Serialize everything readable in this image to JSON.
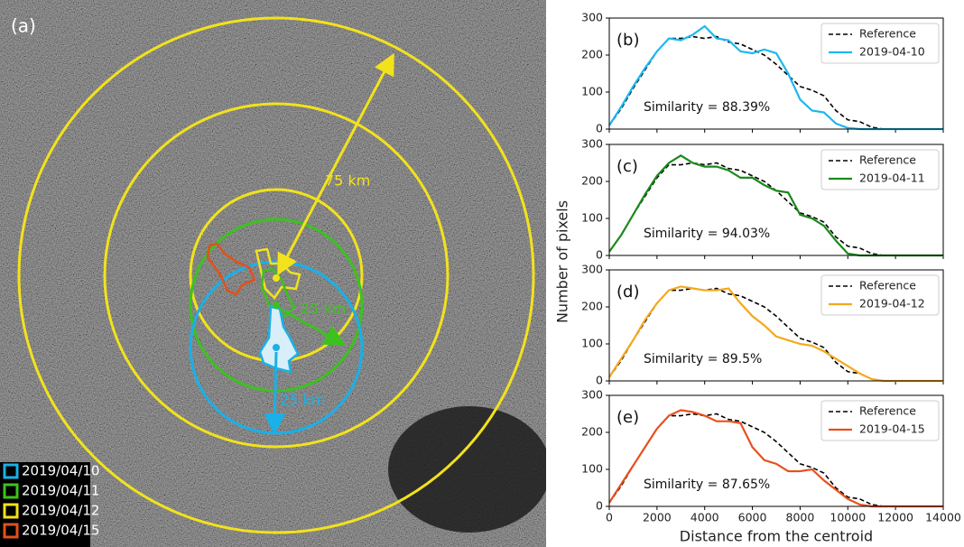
{
  "map": {
    "label": "(a)",
    "legend": [
      {
        "name": "2019/04/10",
        "color": "#1ab0e8"
      },
      {
        "name": "2019/04/11",
        "color": "#3cc21e"
      },
      {
        "name": "2019/04/12",
        "color": "#f2e21c"
      },
      {
        "name": "2019/04/15",
        "color": "#e0521a"
      }
    ],
    "annotations": [
      "75 km",
      "25 km",
      "25 km"
    ]
  },
  "ylabel": "Number of pixels",
  "xlabel": "Distance from the centroid",
  "chart_data": [
    {
      "type": "line",
      "label": "(b)",
      "annotation": "Similarity = 88.39%",
      "x": [
        0,
        500,
        1000,
        1500,
        2000,
        2500,
        3000,
        3500,
        4000,
        4500,
        5000,
        5500,
        6000,
        6500,
        7000,
        7500,
        8000,
        8500,
        9000,
        9500,
        10000,
        10500,
        11000,
        11500,
        12000,
        12500,
        13000,
        13500,
        14000
      ],
      "series": [
        {
          "name": "Reference",
          "color": "#000000",
          "dashed": true,
          "values": [
            10,
            55,
            110,
            160,
            210,
            245,
            245,
            250,
            245,
            250,
            235,
            230,
            215,
            200,
            175,
            145,
            115,
            105,
            90,
            50,
            25,
            20,
            5,
            0,
            0,
            0,
            0,
            0,
            0
          ]
        },
        {
          "name": "2019-04-10",
          "color": "#1ab8f0",
          "values": [
            10,
            60,
            115,
            165,
            210,
            245,
            240,
            255,
            278,
            245,
            240,
            210,
            205,
            215,
            205,
            150,
            80,
            50,
            45,
            15,
            3,
            0,
            0,
            0,
            0,
            0,
            0,
            0,
            0
          ]
        }
      ],
      "xlim": [
        0,
        14000
      ],
      "ylim": [
        0,
        300
      ],
      "xticks": [
        0,
        2000,
        4000,
        6000,
        8000,
        10000,
        12000,
        14000
      ],
      "yticks": [
        0,
        100,
        200,
        300
      ]
    },
    {
      "type": "line",
      "label": "(c)",
      "annotation": "Similarity = 94.03%",
      "x": [
        0,
        500,
        1000,
        1500,
        2000,
        2500,
        3000,
        3500,
        4000,
        4500,
        5000,
        5500,
        6000,
        6500,
        7000,
        7500,
        8000,
        8500,
        9000,
        9500,
        10000,
        10500,
        11000,
        11500,
        12000,
        12500,
        13000,
        13500,
        14000
      ],
      "series": [
        {
          "name": "Reference",
          "color": "#000000",
          "dashed": true,
          "values": [
            10,
            55,
            110,
            160,
            210,
            245,
            245,
            250,
            245,
            250,
            235,
            230,
            215,
            200,
            175,
            145,
            115,
            105,
            90,
            50,
            25,
            20,
            5,
            0,
            0,
            0,
            0,
            0,
            0
          ]
        },
        {
          "name": "2019-04-11",
          "color": "#1a8a1a",
          "values": [
            10,
            55,
            110,
            165,
            215,
            250,
            270,
            250,
            240,
            240,
            230,
            210,
            210,
            190,
            175,
            170,
            110,
            100,
            80,
            40,
            5,
            0,
            0,
            0,
            0,
            0,
            0,
            0,
            0
          ]
        }
      ],
      "xlim": [
        0,
        14000
      ],
      "ylim": [
        0,
        300
      ],
      "xticks": [
        0,
        2000,
        4000,
        6000,
        8000,
        10000,
        12000,
        14000
      ],
      "yticks": [
        0,
        100,
        200,
        300
      ]
    },
    {
      "type": "line",
      "label": "(d)",
      "annotation": "Similarity = 89.5%",
      "x": [
        0,
        500,
        1000,
        1500,
        2000,
        2500,
        3000,
        3500,
        4000,
        4500,
        5000,
        5500,
        6000,
        6500,
        7000,
        7500,
        8000,
        8500,
        9000,
        9500,
        10000,
        10500,
        11000,
        11500,
        12000,
        12500,
        13000,
        13500,
        14000
      ],
      "series": [
        {
          "name": "Reference",
          "color": "#000000",
          "dashed": true,
          "values": [
            10,
            55,
            110,
            160,
            210,
            245,
            245,
            250,
            245,
            250,
            235,
            230,
            215,
            200,
            175,
            145,
            115,
            105,
            90,
            50,
            25,
            20,
            5,
            0,
            0,
            0,
            0,
            0,
            0
          ]
        },
        {
          "name": "2019-04-12",
          "color": "#f5a81c",
          "values": [
            10,
            60,
            110,
            165,
            210,
            245,
            255,
            250,
            245,
            245,
            250,
            210,
            175,
            150,
            120,
            110,
            100,
            95,
            80,
            60,
            40,
            20,
            5,
            0,
            0,
            0,
            0,
            0,
            0
          ]
        }
      ],
      "xlim": [
        0,
        14000
      ],
      "ylim": [
        0,
        300
      ],
      "xticks": [
        0,
        2000,
        4000,
        6000,
        8000,
        10000,
        12000,
        14000
      ],
      "yticks": [
        0,
        100,
        200,
        300
      ]
    },
    {
      "type": "line",
      "label": "(e)",
      "annotation": "Similarity = 87.65%",
      "x": [
        0,
        500,
        1000,
        1500,
        2000,
        2500,
        3000,
        3500,
        4000,
        4500,
        5000,
        5500,
        6000,
        6500,
        7000,
        7500,
        8000,
        8500,
        9000,
        9500,
        10000,
        10500,
        11000,
        11500,
        12000,
        12500,
        13000,
        13500,
        14000
      ],
      "series": [
        {
          "name": "Reference",
          "color": "#000000",
          "dashed": true,
          "values": [
            10,
            55,
            110,
            160,
            210,
            245,
            245,
            250,
            245,
            250,
            235,
            230,
            215,
            200,
            175,
            145,
            115,
            105,
            90,
            50,
            25,
            20,
            5,
            0,
            0,
            0,
            0,
            0,
            0
          ]
        },
        {
          "name": "2019-04-15",
          "color": "#e8501c",
          "values": [
            10,
            60,
            110,
            160,
            210,
            245,
            260,
            255,
            245,
            230,
            230,
            225,
            160,
            125,
            115,
            95,
            95,
            100,
            70,
            45,
            20,
            5,
            0,
            0,
            0,
            0,
            0,
            0,
            0
          ]
        }
      ],
      "xlim": [
        0,
        14000
      ],
      "ylim": [
        0,
        300
      ],
      "xticks": [
        0,
        2000,
        4000,
        6000,
        8000,
        10000,
        12000,
        14000
      ],
      "yticks": [
        0,
        100,
        200,
        300
      ]
    }
  ]
}
